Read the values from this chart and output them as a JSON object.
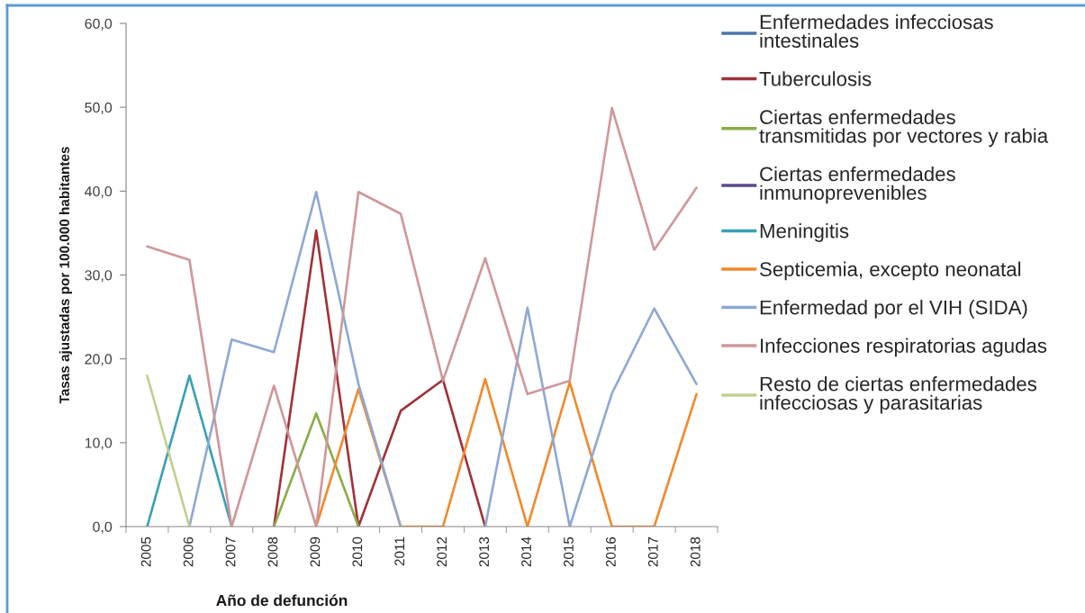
{
  "chart_data": {
    "type": "line",
    "categories": [
      "2005",
      "2006",
      "2007",
      "2008",
      "2009",
      "2010",
      "2011",
      "2012",
      "2013",
      "2014",
      "2015",
      "2016",
      "2017",
      "2018"
    ],
    "xlabel": "Año de defunción",
    "ylabel": "Tasas ajustadas por 100.000 habitantes",
    "ylim": [
      0,
      60
    ],
    "yticks": [
      {
        "value": 0,
        "label": "0,0"
      },
      {
        "value": 10,
        "label": "10,0"
      },
      {
        "value": 20,
        "label": "20,0"
      },
      {
        "value": 30,
        "label": "30,0"
      },
      {
        "value": 40,
        "label": "40,0"
      },
      {
        "value": 50,
        "label": "50,0"
      },
      {
        "value": 60,
        "label": "60,0"
      }
    ],
    "legend": "right",
    "series": [
      {
        "name": "Enfermedades infecciosas\nintestinales",
        "color": "#4a77a8",
        "values": [
          null,
          null,
          null,
          null,
          null,
          null,
          null,
          null,
          null,
          null,
          null,
          null,
          null,
          null
        ]
      },
      {
        "name": "Tuberculosis",
        "color": "#a1323a",
        "values": [
          null,
          null,
          null,
          0,
          35.3,
          0,
          13.8,
          17.5,
          0,
          null,
          null,
          null,
          null,
          null
        ]
      },
      {
        "name": "Ciertas enfermedades\ntransmitidas por vectores y rabia",
        "color": "#8aac48",
        "values": [
          null,
          null,
          null,
          0,
          13.5,
          0,
          null,
          null,
          null,
          null,
          null,
          null,
          null,
          null
        ]
      },
      {
        "name": "Ciertas enfermedades\ninmunoprevenibles",
        "color": "#5a4a8a",
        "values": [
          null,
          null,
          null,
          null,
          null,
          null,
          null,
          null,
          null,
          null,
          null,
          null,
          null,
          null
        ]
      },
      {
        "name": "Meningitis",
        "color": "#3a9fb8",
        "values": [
          0,
          18.0,
          0,
          null,
          null,
          null,
          null,
          null,
          null,
          null,
          null,
          null,
          null,
          null
        ]
      },
      {
        "name": "Septicemia, excepto neonatal",
        "color": "#f08a2c",
        "values": [
          null,
          null,
          null,
          null,
          0,
          16.4,
          0,
          0,
          17.6,
          0,
          17.2,
          0,
          0,
          15.8
        ]
      },
      {
        "name": "Enfermedad por el VIH (SIDA)",
        "color": "#8fa8d4",
        "values": [
          null,
          0,
          22.3,
          20.8,
          39.9,
          17.0,
          0,
          null,
          0,
          26.1,
          0,
          15.9,
          26.0,
          17.0
        ]
      },
      {
        "name": "Infecciones respiratorias agudas",
        "color": "#d0979b",
        "values": [
          33.4,
          31.8,
          0,
          16.8,
          0,
          39.9,
          37.3,
          17.4,
          32.0,
          15.8,
          17.4,
          49.9,
          33.0,
          40.4
        ]
      },
      {
        "name": "Resto de ciertas enfermedades\ninfecciosas y parasitarias",
        "color": "#bfd08f",
        "values": [
          18.0,
          0,
          null,
          null,
          null,
          null,
          null,
          null,
          null,
          null,
          null,
          null,
          null,
          null
        ]
      }
    ]
  }
}
